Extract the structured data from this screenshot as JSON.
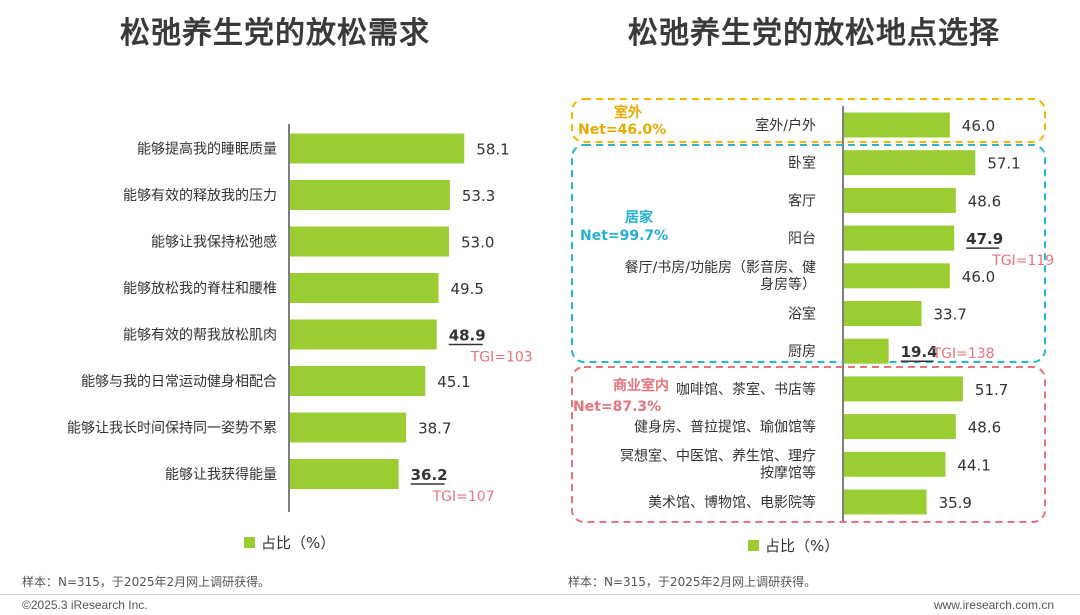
{
  "left_title": "松弛养生党的放松需求",
  "right_title": "松弛养生党的放松地点选择",
  "footnote_left": "样本：N=315，于2025年2月网上调研获得。",
  "footnote_right": "样本：N=315，于2025年2月网上调研获得。",
  "copyright_left": "©2025.3 iResearch Inc.",
  "copyright_right": "www.iresearch.com.cn",
  "colors": {
    "bar": "#9ACD32",
    "tgi": "#E9737A",
    "outdoor_box": "#F5B800",
    "home_box": "#2BB5D9",
    "commercial_box": "#E9737A",
    "outdoor_label": "#E8A900",
    "home_label": "#25B0D6",
    "commercial_label": "#E9737A"
  },
  "chart_data": [
    {
      "type": "bar",
      "orientation": "horizontal",
      "title": "松弛养生党的放松需求",
      "legend": "占比（%）",
      "categories": [
        "能够提高我的睡眠质量",
        "能够有效的释放我的压力",
        "能够让我保持松弛感",
        "能够放松我的脊柱和腰椎",
        "能够有效的帮我放松肌肉",
        "能够与我的日常运动健身相配合",
        "能够让我长时间保持同一姿势不累",
        "能够让我获得能量"
      ],
      "values": [
        58.1,
        53.3,
        53.0,
        49.5,
        48.9,
        45.1,
        38.7,
        36.2
      ],
      "value_labels": [
        "58.1",
        "53.3",
        "53.0",
        "49.5",
        "48.9",
        "45.1",
        "38.7",
        "36.2"
      ],
      "highlights": [
        {
          "index": 4,
          "tgi": "TGI=103"
        },
        {
          "index": 7,
          "tgi": "TGI=107"
        }
      ]
    },
    {
      "type": "bar",
      "orientation": "horizontal",
      "title": "松弛养生党的放松地点选择",
      "legend": "占比（%）",
      "categories": [
        "室外/户外",
        "卧室",
        "客厅",
        "阳台",
        "餐厅/书房/功能房（影音房、健身房等）",
        "浴室",
        "厨房",
        "咖啡馆、茶室、书店等",
        "健身房、普拉提馆、瑜伽馆等",
        "冥想室、中医馆、养生馆、理疗按摩馆等",
        "美术馆、博物馆、电影院等"
      ],
      "category_lines": [
        [
          "室外/户外"
        ],
        [
          "卧室"
        ],
        [
          "客厅"
        ],
        [
          "阳台"
        ],
        [
          "餐厅/书房/功能房（影音房、健",
          "身房等）"
        ],
        [
          "浴室"
        ],
        [
          "厨房"
        ],
        [
          "咖啡馆、茶室、书店等"
        ],
        [
          "健身房、普拉提馆、瑜伽馆等"
        ],
        [
          "冥想室、中医馆、养生馆、理疗",
          "按摩馆等"
        ],
        [
          "美术馆、博物馆、电影院等"
        ]
      ],
      "values": [
        46.0,
        57.1,
        48.6,
        47.9,
        46.0,
        33.7,
        19.4,
        51.7,
        48.6,
        44.1,
        35.9
      ],
      "value_labels": [
        "46.0",
        "57.1",
        "48.6",
        "47.9",
        "46.0",
        "33.7",
        "19.4",
        "51.7",
        "48.6",
        "44.1",
        "35.9"
      ],
      "highlights": [
        {
          "index": 3,
          "tgi": "TGI=119"
        },
        {
          "index": 6,
          "tgi": "TGI=138"
        }
      ],
      "groups": [
        {
          "name": "室外",
          "net": "Net=46.0%",
          "start": 0,
          "end": 0,
          "color_key": "outdoor"
        },
        {
          "name": "居家",
          "net": "Net=99.7%",
          "start": 1,
          "end": 6,
          "color_key": "home"
        },
        {
          "name": "商业室内",
          "net": "Net=87.3%",
          "start": 7,
          "end": 10,
          "color_key": "commercial"
        }
      ]
    }
  ]
}
